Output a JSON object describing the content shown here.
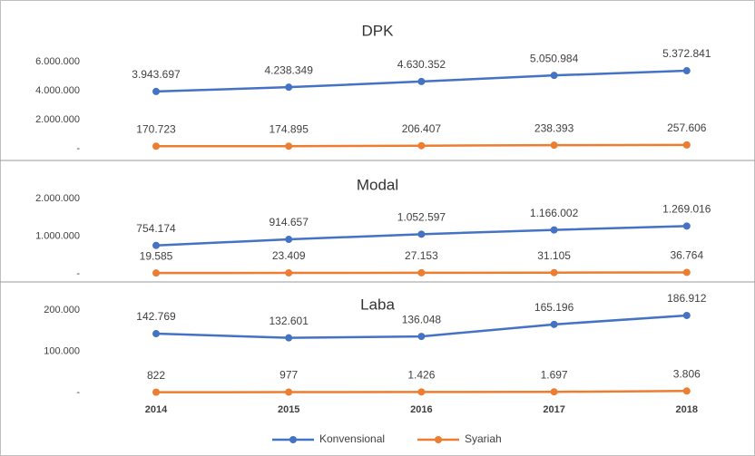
{
  "chart_data": {
    "type": "line",
    "categories": [
      "2014",
      "2015",
      "2016",
      "2017",
      "2018"
    ],
    "series": [
      {
        "name": "Konvensional",
        "color": "#4472c4"
      },
      {
        "name": "Syariah",
        "color": "#ed7d31"
      }
    ],
    "grid": false,
    "panels": [
      {
        "title": "DPK",
        "ylim": [
          0,
          7000000
        ],
        "yticks": [
          {
            "value": 0,
            "label": "-"
          },
          {
            "value": 2000000,
            "label": "2.000.000"
          },
          {
            "value": 4000000,
            "label": "4.000.000"
          },
          {
            "value": 6000000,
            "label": "6.000.000"
          }
        ],
        "series": [
          {
            "values": [
              3943697,
              4238349,
              4630352,
              5050984,
              5372841
            ],
            "value_labels": [
              "3.943.697",
              "4.238.349",
              "4.630.352",
              "5.050.984",
              "5.372.841"
            ]
          },
          {
            "values": [
              170723,
              174895,
              206407,
              238393,
              257606
            ],
            "value_labels": [
              "170.723",
              "174.895",
              "206.407",
              "238.393",
              "257.606"
            ]
          }
        ]
      },
      {
        "title": "Modal",
        "ylim": [
          0,
          2000000
        ],
        "yticks": [
          {
            "value": 0,
            "label": "-"
          },
          {
            "value": 1000000,
            "label": "1.000.000"
          },
          {
            "value": 2000000,
            "label": "2.000.000"
          }
        ],
        "series": [
          {
            "values": [
              754174,
              914657,
              1052597,
              1166002,
              1269016
            ],
            "value_labels": [
              "754.174",
              "914.657",
              "1.052.597",
              "1.166.002",
              "1.269.016"
            ]
          },
          {
            "values": [
              19585,
              23409,
              27153,
              31105,
              36764
            ],
            "value_labels": [
              "19.585",
              "23.409",
              "27.153",
              "31.105",
              "36.764"
            ]
          }
        ]
      },
      {
        "title": "Laba",
        "ylim": [
          0,
          200000
        ],
        "yticks": [
          {
            "value": 0,
            "label": "-"
          },
          {
            "value": 100000,
            "label": "100.000"
          },
          {
            "value": 200000,
            "label": "200.000"
          }
        ],
        "series": [
          {
            "values": [
              142769,
              132601,
              136048,
              165196,
              186912
            ],
            "value_labels": [
              "142.769",
              "132.601",
              "136.048",
              "165.196",
              "186.912"
            ]
          },
          {
            "values": [
              822,
              977,
              1426,
              1697,
              3806
            ],
            "value_labels": [
              "822",
              "977",
              "1.426",
              "1.697",
              "3.806"
            ]
          }
        ]
      }
    ]
  }
}
